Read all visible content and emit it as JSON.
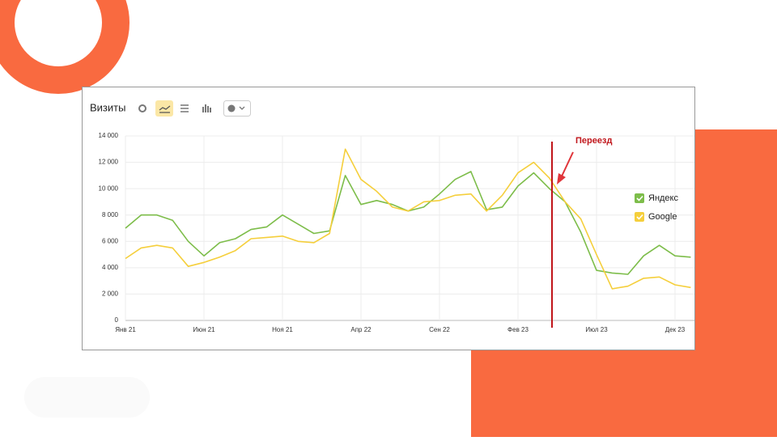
{
  "chart_data": {
    "type": "line",
    "title": "Визиты",
    "annotation": "Переезд",
    "categories": [
      "Янв 21",
      null,
      null,
      null,
      null,
      "Июн 21",
      null,
      null,
      null,
      null,
      "Ноя 21",
      null,
      null,
      null,
      null,
      "Апр 22",
      null,
      null,
      null,
      null,
      "Сен 22",
      null,
      null,
      null,
      null,
      "Фев 23",
      null,
      null,
      null,
      null,
      "Июл 23",
      null,
      null,
      null,
      null,
      "Дек 23",
      null
    ],
    "series": [
      {
        "name": "Яндекс",
        "color": "#7dbd4a",
        "values": [
          7000,
          8000,
          8000,
          7600,
          6000,
          4900,
          5900,
          6200,
          6900,
          7100,
          8000,
          7300,
          6600,
          6800,
          11000,
          8800,
          9100,
          8800,
          8300,
          8600,
          9600,
          10700,
          11300,
          8400,
          8600,
          10200,
          11200,
          10000,
          9000,
          6700,
          3800,
          3600,
          3500,
          4900,
          5700,
          4900,
          4800
        ]
      },
      {
        "name": "Google",
        "color": "#f5cf3c",
        "values": [
          4700,
          5500,
          5700,
          5500,
          4100,
          4400,
          4800,
          5300,
          6200,
          6300,
          6400,
          6000,
          5900,
          6600,
          13000,
          10700,
          9800,
          8600,
          8300,
          9000,
          9100,
          9500,
          9600,
          8300,
          9500,
          11200,
          12000,
          10800,
          9000,
          7700,
          5000,
          2400,
          2600,
          3200,
          3300,
          2700,
          2500
        ]
      }
    ],
    "ylim": [
      0,
      14000
    ],
    "yticks": [
      0,
      {
        "value": 2000,
        "label": "2 000"
      },
      {
        "value": 4000,
        "label": "4 000"
      },
      {
        "value": 6000,
        "label": "6 000"
      },
      {
        "value": 8000,
        "label": "8 000"
      },
      {
        "value": 10000,
        "label": "10 000"
      },
      {
        "value": 12000,
        "label": "12 000"
      },
      {
        "value": 14000,
        "label": "14 000"
      }
    ],
    "grid": true
  }
}
